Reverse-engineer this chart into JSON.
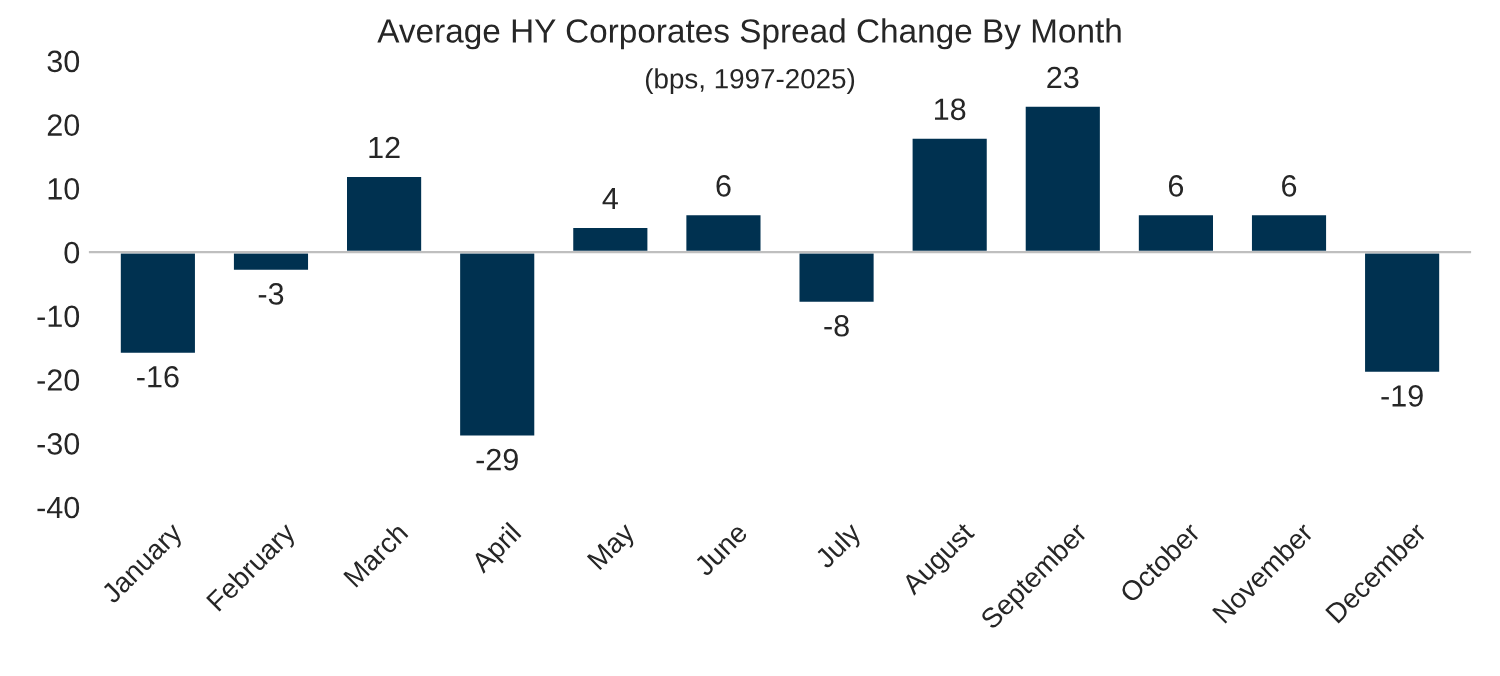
{
  "chart_data": {
    "type": "bar",
    "title": "Average HY Corporates Spread Change By Month",
    "subtitle": "(bps, 1997-2025)",
    "categories": [
      "January",
      "February",
      "March",
      "April",
      "May",
      "June",
      "July",
      "August",
      "September",
      "October",
      "November",
      "December"
    ],
    "values": [
      -16,
      -3,
      12,
      -29,
      4,
      6,
      -8,
      18,
      23,
      6,
      6,
      -19
    ],
    "color": "#003150",
    "ylim": [
      -40,
      30
    ],
    "yticks": [
      -40,
      -30,
      -20,
      -10,
      0,
      10,
      20,
      30
    ],
    "data_labels": true
  }
}
